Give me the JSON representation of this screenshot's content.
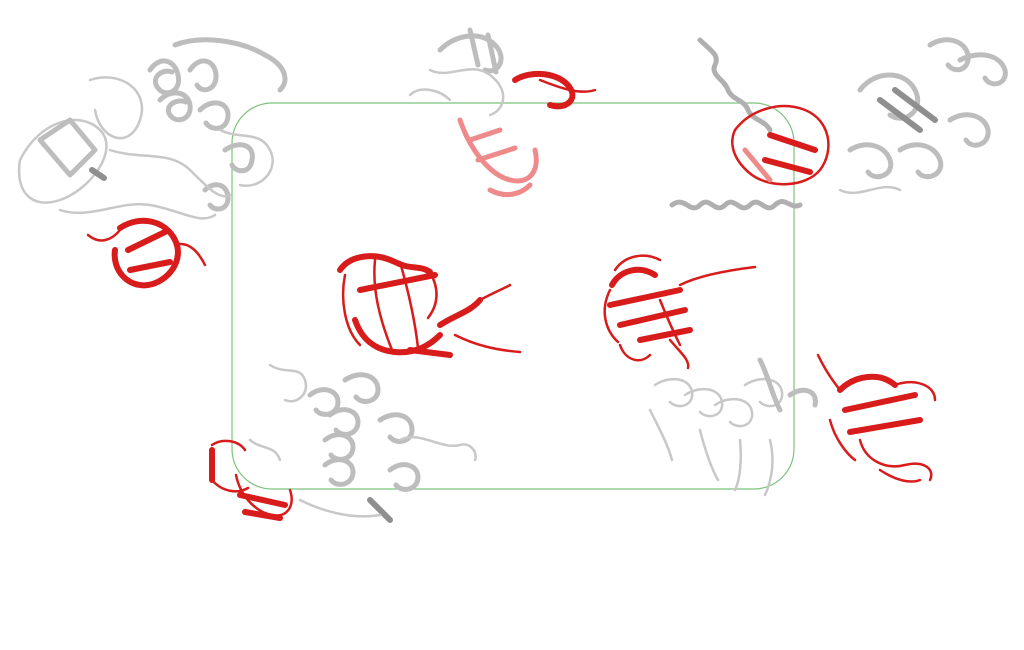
{
  "figure": {
    "background": "#ffffff",
    "frame_color": "#7cc47c",
    "domain_color": "#d81b1b",
    "context_color": "#bdbdbd",
    "panels": [
      {
        "name": "top-left-structure",
        "highlight": "red-domain"
      },
      {
        "name": "top-center-structure",
        "highlight": "red-domain"
      },
      {
        "name": "top-right-structure",
        "highlight": "red-domain"
      },
      {
        "name": "center-left-domain",
        "highlight": "red-domain"
      },
      {
        "name": "center-right-domain",
        "highlight": "red-domain"
      },
      {
        "name": "bottom-left-structure",
        "highlight": "red-domain"
      },
      {
        "name": "bottom-right-structure",
        "highlight": "red-domain"
      }
    ]
  }
}
